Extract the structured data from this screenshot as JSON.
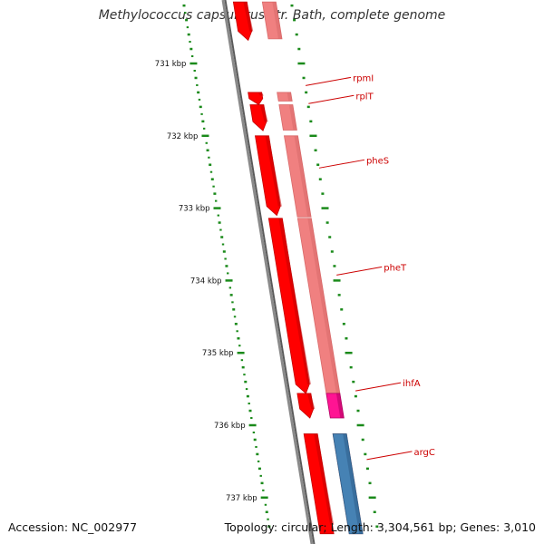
{
  "title": "Methylococcus capsulatus str. Bath, complete genome",
  "footer": {
    "accession": "Accession: NC_002977",
    "stats": "Topology: circular; Length: 3,304,561 bp; Genes: 3,010"
  },
  "colors": {
    "backbone": "#8a8a8a",
    "backbone_shadow": "#5a5a5a",
    "cds": "#ff0000",
    "cds_dark": "#c40000",
    "cds_light": "#f08080",
    "cds_light_edge": "#d96a6a",
    "trna_like": "#ff1493",
    "blue_feature": "#4682b4",
    "tick": "#1a8a1a",
    "gene_label": "#cc0000"
  },
  "scale": {
    "unit": "kbp",
    "major_ticks": [
      {
        "value": 731,
        "label": "731 kbp"
      },
      {
        "value": 732,
        "label": "732 kbp"
      },
      {
        "value": 733,
        "label": "733 kbp"
      },
      {
        "value": 734,
        "label": "734 kbp"
      },
      {
        "value": 735,
        "label": "735 kbp"
      },
      {
        "value": 736,
        "label": "736 kbp"
      },
      {
        "value": 737,
        "label": "737 kbp"
      }
    ],
    "view_start_kbp": 730.15,
    "view_end_kbp": 737.5
  },
  "features": [
    {
      "name": "",
      "start": 730.15,
      "end": 730.68,
      "strand": "-",
      "type": "cds"
    },
    {
      "name": "",
      "start": 730.15,
      "end": 730.66,
      "strand": "-",
      "type": "cds_light"
    },
    {
      "name": "rpmI",
      "start": 731.4,
      "end": 731.52,
      "strand": "-",
      "type": "cds_light"
    },
    {
      "name": "",
      "start": 731.4,
      "end": 731.57,
      "strand": "-",
      "type": "cds"
    },
    {
      "name": "rplT",
      "start": 731.57,
      "end": 731.93,
      "strand": "-",
      "type": "cds"
    },
    {
      "name": "rplT",
      "start": 731.57,
      "end": 731.92,
      "strand": "-",
      "type": "cds_light"
    },
    {
      "name": "pheS",
      "start": 732.0,
      "end": 733.1,
      "strand": "-",
      "type": "cds"
    },
    {
      "name": "pheS",
      "start": 732.0,
      "end": 733.12,
      "strand": "-",
      "type": "cds_light"
    },
    {
      "name": "pheT",
      "start": 733.14,
      "end": 735.56,
      "strand": "-",
      "type": "cds"
    },
    {
      "name": "pheT",
      "start": 733.14,
      "end": 735.56,
      "strand": "-",
      "type": "cds_light"
    },
    {
      "name": "ihfA",
      "start": 735.56,
      "end": 735.9,
      "strand": "-",
      "type": "cds"
    },
    {
      "name": "ihfA",
      "start": 735.56,
      "end": 735.9,
      "strand": "+",
      "type": "trna_like"
    },
    {
      "name": "argC",
      "start": 736.12,
      "end": 737.5,
      "strand": "-",
      "type": "cds"
    },
    {
      "name": "argC",
      "start": 736.12,
      "end": 737.5,
      "strand": "+",
      "type": "blue_feature"
    },
    {
      "name": "",
      "start": 736.12,
      "end": 737.5,
      "strand": "+",
      "type": "cds_light"
    }
  ],
  "gene_labels": [
    {
      "text": "rpmI",
      "kbp": 731.28
    },
    {
      "text": "rplT",
      "kbp": 731.53
    },
    {
      "text": "pheS",
      "kbp": 732.42
    },
    {
      "text": "pheT",
      "kbp": 733.9
    },
    {
      "text": "ihfA",
      "kbp": 735.5
    },
    {
      "text": "argC",
      "kbp": 736.45
    }
  ]
}
